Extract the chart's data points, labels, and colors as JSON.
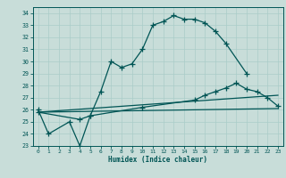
{
  "title": "",
  "xlabel": "Humidex (Indice chaleur)",
  "bg_color": "#c8ddd9",
  "grid_color": "#aaccc8",
  "line_color": "#005555",
  "xlim": [
    -0.5,
    23.5
  ],
  "ylim": [
    23,
    34.5
  ],
  "xticks": [
    0,
    1,
    2,
    3,
    4,
    5,
    6,
    7,
    8,
    9,
    10,
    11,
    12,
    13,
    14,
    15,
    16,
    17,
    18,
    19,
    20,
    21,
    22,
    23
  ],
  "yticks": [
    23,
    24,
    25,
    26,
    27,
    28,
    29,
    30,
    31,
    32,
    33,
    34
  ],
  "curve1_x": [
    0,
    1,
    3,
    4,
    5,
    6,
    7,
    8,
    9,
    10,
    11,
    12,
    13,
    14,
    15,
    16,
    17,
    18,
    20
  ],
  "curve1_y": [
    26.0,
    24.0,
    25.0,
    23.0,
    25.5,
    27.5,
    30.0,
    29.5,
    29.8,
    31.0,
    33.0,
    33.3,
    33.8,
    33.5,
    33.5,
    33.2,
    32.5,
    31.5,
    29.0
  ],
  "curve2_x": [
    0,
    23
  ],
  "curve2_y": [
    25.8,
    26.1
  ],
  "curve3_x": [
    0,
    23
  ],
  "curve3_y": [
    25.8,
    27.2
  ],
  "curve4_x": [
    0,
    4,
    5,
    10,
    15,
    16,
    17,
    18,
    19,
    20,
    21,
    22,
    23
  ],
  "curve4_y": [
    25.8,
    25.2,
    25.5,
    26.2,
    26.8,
    27.2,
    27.5,
    27.8,
    28.2,
    27.7,
    27.5,
    27.0,
    26.3
  ]
}
